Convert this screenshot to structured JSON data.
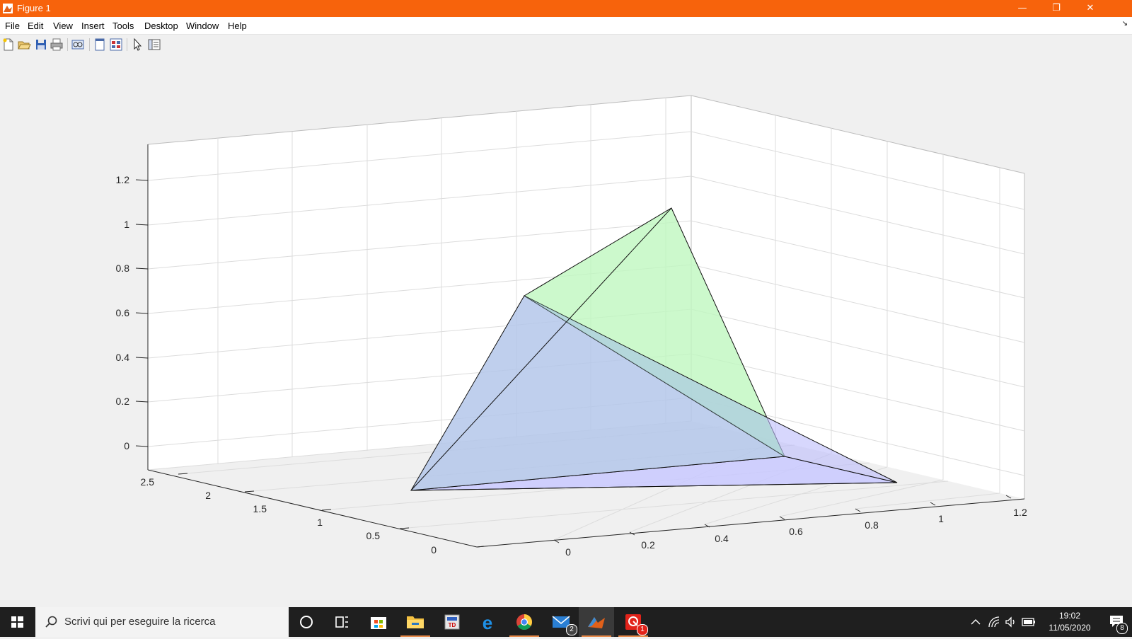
{
  "window": {
    "title": "Figure 1",
    "accent": "#f7630c",
    "minimize_icon": "minimize-icon",
    "maximize_icon": "restore-icon",
    "close_icon": "close-icon"
  },
  "menu": {
    "items": [
      "File",
      "Edit",
      "View",
      "Insert",
      "Tools",
      "Desktop",
      "Window",
      "Help"
    ]
  },
  "toolbar": {
    "icons": [
      "new-figure-icon",
      "open-file-icon",
      "save-icon",
      "print-icon",
      "link-plot-icon",
      "hide-plot-tools-icon",
      "show-plot-tools-icon",
      "edit-plot-arrow-icon",
      "property-inspector-icon"
    ]
  },
  "plot": {
    "x_ticks": [
      "0",
      "0.2",
      "0.4",
      "0.6",
      "0.8",
      "1",
      "1.2"
    ],
    "y_ticks": [
      "0",
      "0.5",
      "1",
      "1.5",
      "2",
      "2.5"
    ],
    "z_ticks": [
      "0",
      "0.2",
      "0.4",
      "0.6",
      "0.8",
      "1",
      "1.2"
    ],
    "grid": true,
    "face_colors": {
      "green": "#bff7bf",
      "blue": "#b4c7ea",
      "violet": "#c9c9ff"
    }
  },
  "taskbar": {
    "search_placeholder": "Scrivi qui per eseguire la ricerca",
    "mail_badge": "2",
    "alert_badge": "1",
    "time": "19:02",
    "date": "11/05/2020",
    "notifications_badge": "8"
  }
}
